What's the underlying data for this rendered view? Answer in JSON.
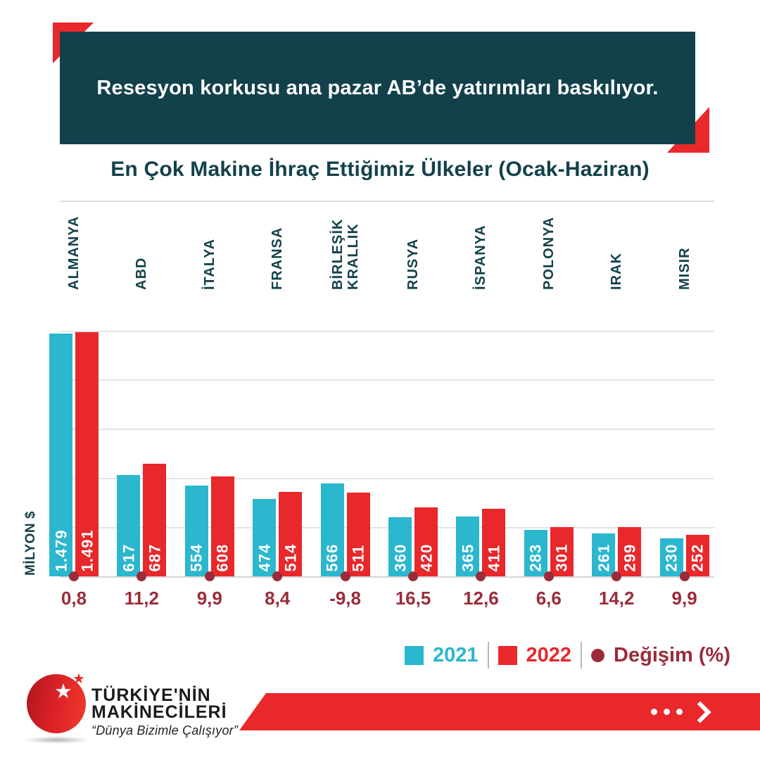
{
  "header": {
    "title": "Resesyon korkusu ana pazar AB’de yatırımları baskılıyor."
  },
  "chart_data": {
    "type": "bar",
    "title": "En Çok Makine İhraç Ettiğimiz Ülkeler (Ocak-Haziran)",
    "ylabel": "MİLYON $",
    "categories": [
      "ALMANYA",
      "ABD",
      "İTALYA",
      "FRANSA",
      "BİRLEŞİK\nKRALLIK",
      "RUSYA",
      "İSPANYA",
      "POLONYA",
      "IRAK",
      "MISIR"
    ],
    "series": [
      {
        "name": "2021",
        "color": "#2BB7CE",
        "values": [
          1479,
          617,
          554,
          474,
          566,
          360,
          365,
          283,
          261,
          230
        ],
        "display": [
          "1.479",
          "617",
          "554",
          "474",
          "566",
          "360",
          "365",
          "283",
          "261",
          "230"
        ]
      },
      {
        "name": "2022",
        "color": "#E8282B",
        "values": [
          1491,
          687,
          608,
          514,
          511,
          420,
          411,
          301,
          299,
          252
        ],
        "display": [
          "1.491",
          "687",
          "608",
          "514",
          "511",
          "420",
          "411",
          "301",
          "299",
          "252"
        ]
      }
    ],
    "change_series": {
      "name": "Değişim (%)",
      "color": "#9C2B3A",
      "values": [
        0.8,
        11.2,
        9.9,
        8.4,
        -9.8,
        16.5,
        12.6,
        6.6,
        14.2,
        9.9
      ],
      "display": [
        "0,8",
        "11,2",
        "9,9",
        "8,4",
        "-9,8",
        "16,5",
        "12,6",
        "6,6",
        "14,2",
        "9,9"
      ]
    },
    "legend": [
      "2021",
      "2022",
      "Değişim (%)"
    ],
    "legend_position": "bottom-right",
    "ylim": [
      0,
      1500
    ],
    "gridline_step": 300,
    "grid": true
  },
  "footer": {
    "brand_line1": "TÜRKİYE'NİN",
    "brand_line2": "MAKİNECİLERİ",
    "tagline": "“Dünya Bizimle Çalışıyor”"
  },
  "colors": {
    "teal": "#13414B",
    "cyan": "#2BB7CE",
    "red": "#E8282B",
    "maroon": "#9C2B3A"
  }
}
